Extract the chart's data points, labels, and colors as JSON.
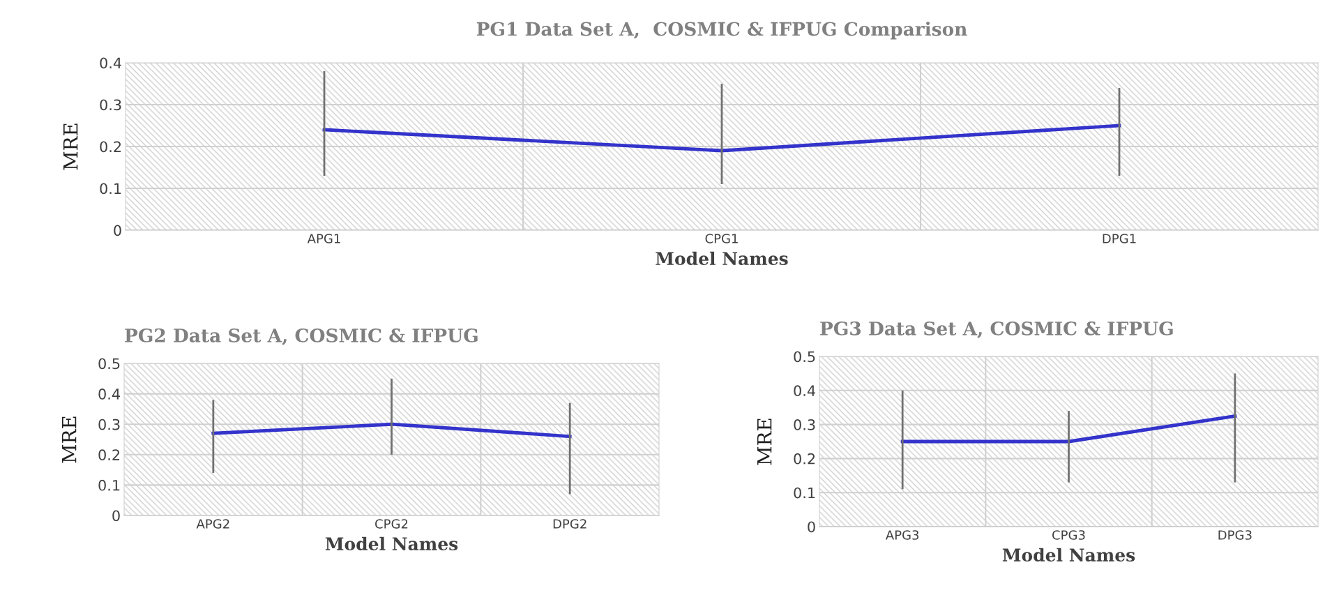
{
  "chart_data": [
    {
      "type": "line",
      "title": "PG1 Data Set A,  COSMIC & IFPUG Comparison",
      "xlabel": "Model Names",
      "ylabel": "MRE",
      "categories": [
        "APG1",
        "CPG1",
        "DPG1"
      ],
      "series": [
        {
          "color": "#3333cc",
          "values": [
            0.24,
            0.19,
            0.25
          ],
          "errors": [
            [
              0.13,
              0.38
            ],
            [
              0.11,
              0.35
            ],
            [
              0.13,
              0.34
            ]
          ]
        }
      ],
      "ylim": [
        0,
        0.4
      ],
      "yticks": [
        0,
        0.1,
        0.2,
        0.3,
        0.4
      ],
      "grid": true,
      "legend": false,
      "marker": "none",
      "line_style": "solid"
    },
    {
      "type": "line",
      "title": "PG2 Data Set A, COSMIC & IFPUG",
      "xlabel": "Model Names",
      "ylabel": "MRE",
      "categories": [
        "APG2",
        "CPG2",
        "DPG2"
      ],
      "series": [
        {
          "color": "#3333cc",
          "values": [
            0.27,
            0.3,
            0.26
          ],
          "errors": [
            [
              0.14,
              0.38
            ],
            [
              0.2,
              0.45
            ],
            [
              0.07,
              0.37
            ]
          ]
        }
      ],
      "ylim": [
        0,
        0.5
      ],
      "yticks": [
        0,
        0.1,
        0.2,
        0.3,
        0.4,
        0.5
      ],
      "grid": true,
      "legend": false,
      "marker": "none",
      "line_style": "solid"
    },
    {
      "type": "line",
      "title": "PG3 Data Set A, COSMIC & IFPUG",
      "xlabel": "Model Names",
      "ylabel": "MRE",
      "categories": [
        "APG3",
        "CPG3",
        "DPG3"
      ],
      "series": [
        {
          "color": "#3333cc",
          "values": [
            0.25,
            0.25,
            0.325
          ],
          "errors": [
            [
              0.11,
              0.4
            ],
            [
              0.13,
              0.34
            ],
            [
              0.13,
              0.45
            ]
          ]
        }
      ],
      "ylim": [
        0,
        0.5
      ],
      "yticks": [
        0,
        0.1,
        0.2,
        0.3,
        0.4,
        0.5
      ],
      "grid": true,
      "legend": false,
      "marker": "none",
      "line_style": "solid"
    }
  ]
}
